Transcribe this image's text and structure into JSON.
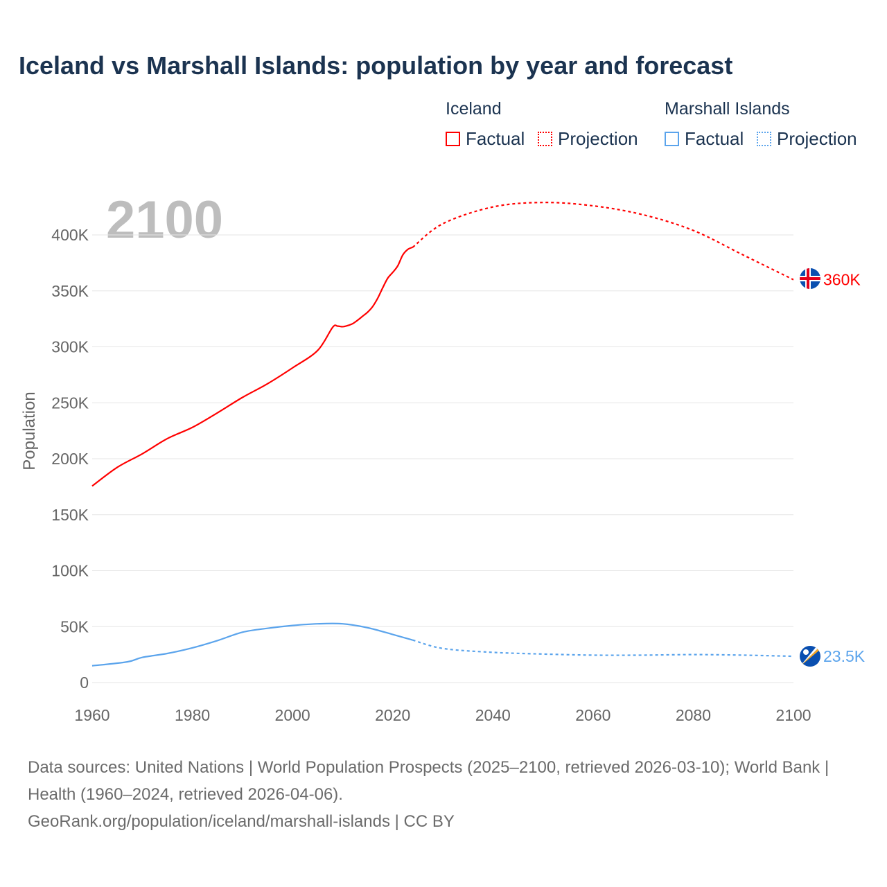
{
  "title": "Iceland vs Marshall Islands: population by year and forecast",
  "legend": {
    "groups": [
      {
        "name": "Iceland",
        "color": "#ff0000",
        "factual": "Factual",
        "projection": "Projection"
      },
      {
        "name": "Marshall Islands",
        "color": "#5ba4ec",
        "factual": "Factual",
        "projection": "Projection"
      }
    ]
  },
  "year_overlay": "2100",
  "footer": {
    "sources": "Data sources: United Nations | World Population Prospects (2025–2100, retrieved 2026-03-10); World Bank | Health (1960–2024, retrieved 2026-04-06).",
    "link": "GeoRank.org/population/iceland/marshall-islands | CC BY"
  },
  "chart_data": {
    "type": "line",
    "title": "Iceland vs Marshall Islands: population by year and forecast",
    "xlabel": "",
    "ylabel": "Population",
    "xlim": [
      1960,
      2100
    ],
    "ylim": [
      0,
      430000
    ],
    "x_ticks": [
      "1960",
      "1980",
      "2000",
      "2020",
      "2040",
      "2060",
      "2080",
      "2100"
    ],
    "y_ticks": [
      {
        "v": 0,
        "label": "0"
      },
      {
        "v": 50000,
        "label": "50K"
      },
      {
        "v": 100000,
        "label": "100K"
      },
      {
        "v": 150000,
        "label": "150K"
      },
      {
        "v": 200000,
        "label": "200K"
      },
      {
        "v": 250000,
        "label": "250K"
      },
      {
        "v": 300000,
        "label": "300K"
      },
      {
        "v": 350000,
        "label": "350K"
      },
      {
        "v": 400000,
        "label": "400K"
      }
    ],
    "grid": true,
    "series": [
      {
        "name": "Iceland",
        "color": "#ff0000",
        "end_label": "360K",
        "factual": {
          "x": [
            1960,
            1965,
            1970,
            1975,
            1980,
            1985,
            1990,
            1995,
            2000,
            2005,
            2008,
            2009,
            2010,
            2011,
            2012,
            2013,
            2014,
            2015,
            2016,
            2017,
            2018,
            2019,
            2020,
            2021,
            2022,
            2023,
            2024
          ],
          "y": [
            175600,
            192300,
            204400,
            218000,
            228000,
            241000,
            254800,
            267000,
            281200,
            296700,
            317400,
            318500,
            318000,
            319000,
            320700,
            323800,
            327400,
            331000,
            336000,
            343400,
            352700,
            361300,
            366500,
            372300,
            382000,
            387000,
            389000
          ]
        },
        "projection": {
          "x": [
            2024,
            2030,
            2040,
            2050,
            2060,
            2070,
            2080,
            2090,
            2100
          ],
          "y": [
            389000,
            410000,
            425000,
            429000,
            426000,
            418000,
            404000,
            382000,
            360000
          ]
        }
      },
      {
        "name": "Marshall Islands",
        "color": "#5ba4ec",
        "end_label": "23.5K",
        "factual": {
          "x": [
            1960,
            1967,
            1970,
            1975,
            1980,
            1985,
            1990,
            1995,
            2000,
            2005,
            2010,
            2015,
            2020,
            2024
          ],
          "y": [
            15000,
            18500,
            22500,
            26000,
            31000,
            37500,
            45000,
            48500,
            51000,
            52500,
            52500,
            49000,
            43000,
            38000
          ]
        },
        "projection": {
          "x": [
            2024,
            2030,
            2040,
            2050,
            2060,
            2070,
            2080,
            2090,
            2100
          ],
          "y": [
            38000,
            30500,
            27000,
            25500,
            24500,
            24500,
            25000,
            24500,
            23500
          ]
        }
      }
    ],
    "legend_position": "top-right"
  }
}
